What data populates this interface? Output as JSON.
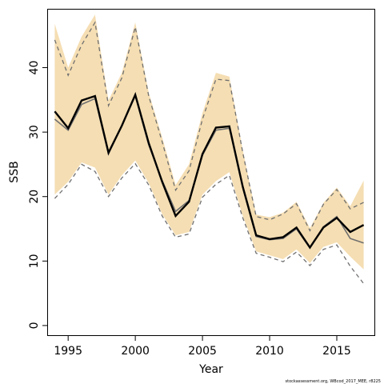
{
  "chart_data": {
    "type": "line",
    "title": "",
    "xlabel": "Year",
    "ylabel": "SSB",
    "xlim": [
      1993.5,
      2017.8
    ],
    "ylim": [
      -1.5,
      49
    ],
    "x_ticks": [
      1995,
      2000,
      2005,
      2010,
      2015
    ],
    "y_ticks": [
      0,
      10,
      20,
      30,
      40
    ],
    "grid": false,
    "legend": "none",
    "x": [
      1994,
      1995,
      1996,
      1997,
      1998,
      1999,
      2000,
      2001,
      2002,
      2003,
      2004,
      2005,
      2006,
      2007,
      2008,
      2009,
      2010,
      2011,
      2012,
      2013,
      2014,
      2015,
      2016,
      2017
    ],
    "series": [
      {
        "role": "estimate",
        "values": [
          33.2,
          30.6,
          34.9,
          35.6,
          26.8,
          31.0,
          35.8,
          28.3,
          22.3,
          17.0,
          19.2,
          26.6,
          30.7,
          30.9,
          21.5,
          14.0,
          13.4,
          13.7,
          15.2,
          12.1,
          15.2,
          16.7,
          14.5,
          15.6
        ]
      },
      {
        "role": "comparison_estimate",
        "values": [
          32.0,
          30.3,
          34.3,
          35.2,
          26.6,
          31.0,
          35.6,
          28.0,
          22.5,
          17.7,
          19.4,
          26.4,
          30.3,
          30.6,
          21.3,
          13.8,
          13.3,
          13.5,
          15.0,
          12.0,
          15.3,
          16.9,
          13.5,
          12.8
        ]
      },
      {
        "role": "upper_bound",
        "values": [
          44.3,
          38.8,
          43.5,
          47.0,
          34.1,
          38.4,
          46.3,
          35.6,
          28.5,
          21.0,
          24.0,
          32.0,
          38.2,
          38.0,
          26.8,
          16.9,
          16.4,
          17.3,
          18.9,
          14.7,
          18.8,
          21.1,
          18.1,
          19.1
        ]
      },
      {
        "role": "lower_bound",
        "values": [
          19.7,
          21.9,
          25.0,
          23.9,
          20.0,
          22.9,
          25.1,
          21.8,
          17.0,
          13.7,
          14.2,
          19.9,
          21.9,
          23.3,
          16.7,
          11.2,
          10.6,
          9.9,
          11.4,
          9.3,
          11.8,
          12.5,
          9.2,
          6.5
        ]
      },
      {
        "role": "band_upper",
        "values": [
          46.8,
          40.0,
          44.8,
          48.2,
          34.9,
          39.2,
          47.0,
          36.1,
          29.2,
          21.8,
          25.0,
          33.0,
          39.2,
          38.6,
          27.2,
          17.2,
          16.8,
          17.5,
          19.2,
          15.1,
          19.0,
          21.4,
          18.5,
          22.5
        ]
      },
      {
        "role": "band_lower",
        "values": [
          20.3,
          22.3,
          25.3,
          24.5,
          20.3,
          23.3,
          25.6,
          22.1,
          17.3,
          14.0,
          14.5,
          20.3,
          22.4,
          23.8,
          17.0,
          11.5,
          10.9,
          10.3,
          11.8,
          9.7,
          12.2,
          12.9,
          10.7,
          8.7
        ]
      }
    ],
    "colors": {
      "band": "#F5DEB3",
      "estimate": "#000000",
      "comparison": "#707070",
      "bounds": "#707070"
    }
  },
  "footer": {
    "credit": "stockassessment.org, WBcod_2017_MEE, r8225"
  }
}
